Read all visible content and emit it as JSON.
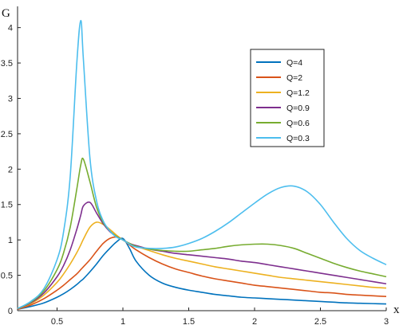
{
  "chart_data": {
    "type": "line",
    "title": "",
    "xlabel": "x",
    "ylabel": "G",
    "xlim": [
      0.2,
      3
    ],
    "ylim": [
      0,
      4.3
    ],
    "xticks": [
      0.5,
      1,
      1.5,
      2,
      2.5,
      3
    ],
    "xtick_labels": [
      "0.5",
      "1",
      "1.5",
      "2",
      "2.5",
      "3"
    ],
    "yticks": [
      0,
      0.5,
      1,
      1.5,
      2,
      2.5,
      3,
      3.5,
      4
    ],
    "ytick_labels": [
      "0",
      "0.5",
      "1",
      "1.5",
      "2",
      "2.5",
      "3",
      "3.5",
      "4"
    ],
    "grid": false,
    "legend_position": "top-right",
    "x": [
      0.2,
      0.3,
      0.4,
      0.5,
      0.55,
      0.6,
      0.65,
      0.68,
      0.7,
      0.75,
      0.8,
      0.85,
      0.9,
      0.95,
      1.0,
      1.05,
      1.1,
      1.2,
      1.3,
      1.4,
      1.5,
      1.6,
      1.7,
      1.8,
      1.9,
      2.0,
      2.1,
      2.2,
      2.3,
      2.4,
      2.5,
      2.6,
      2.7,
      2.8,
      2.9,
      3.0
    ],
    "series": [
      {
        "name": "Q=4",
        "color": "#0072BD",
        "values": [
          0.02,
          0.06,
          0.11,
          0.19,
          0.24,
          0.3,
          0.37,
          0.42,
          0.45,
          0.55,
          0.66,
          0.78,
          0.88,
          0.97,
          1.02,
          0.88,
          0.7,
          0.5,
          0.39,
          0.33,
          0.29,
          0.26,
          0.23,
          0.21,
          0.19,
          0.18,
          0.17,
          0.16,
          0.15,
          0.14,
          0.13,
          0.12,
          0.11,
          0.105,
          0.1,
          0.095
        ]
      },
      {
        "name": "Q=2",
        "color": "#D95319",
        "values": [
          0.02,
          0.08,
          0.17,
          0.29,
          0.36,
          0.44,
          0.52,
          0.58,
          0.62,
          0.72,
          0.84,
          0.95,
          1.02,
          1.04,
          1.0,
          0.93,
          0.86,
          0.75,
          0.66,
          0.59,
          0.54,
          0.49,
          0.45,
          0.42,
          0.39,
          0.36,
          0.34,
          0.32,
          0.3,
          0.28,
          0.26,
          0.25,
          0.23,
          0.22,
          0.21,
          0.2
        ]
      },
      {
        "name": "Q=1.2",
        "color": "#EDB120",
        "values": [
          0.03,
          0.1,
          0.22,
          0.4,
          0.52,
          0.66,
          0.82,
          0.93,
          1.01,
          1.18,
          1.25,
          1.22,
          1.15,
          1.07,
          1.0,
          0.95,
          0.91,
          0.85,
          0.79,
          0.74,
          0.7,
          0.66,
          0.62,
          0.59,
          0.56,
          0.53,
          0.5,
          0.47,
          0.45,
          0.43,
          0.41,
          0.39,
          0.37,
          0.35,
          0.33,
          0.32
        ]
      },
      {
        "name": "Q=0.9",
        "color": "#7E2F8E",
        "values": [
          0.03,
          0.11,
          0.25,
          0.48,
          0.64,
          0.86,
          1.15,
          1.35,
          1.48,
          1.53,
          1.38,
          1.23,
          1.12,
          1.05,
          1.0,
          0.95,
          0.92,
          0.87,
          0.84,
          0.81,
          0.79,
          0.77,
          0.75,
          0.73,
          0.7,
          0.68,
          0.65,
          0.62,
          0.59,
          0.56,
          0.53,
          0.5,
          0.47,
          0.44,
          0.41,
          0.38
        ]
      },
      {
        "name": "Q=0.6",
        "color": "#77AC30",
        "values": [
          0.03,
          0.12,
          0.28,
          0.58,
          0.82,
          1.18,
          1.72,
          2.06,
          2.14,
          1.82,
          1.46,
          1.25,
          1.13,
          1.05,
          1.0,
          0.95,
          0.91,
          0.87,
          0.85,
          0.84,
          0.84,
          0.86,
          0.88,
          0.91,
          0.93,
          0.94,
          0.94,
          0.92,
          0.88,
          0.81,
          0.74,
          0.67,
          0.61,
          0.56,
          0.52,
          0.48
        ]
      },
      {
        "name": "Q=0.3",
        "color": "#4DBEEE",
        "values": [
          0.03,
          0.13,
          0.31,
          0.72,
          1.12,
          1.9,
          3.5,
          4.1,
          3.55,
          2.15,
          1.55,
          1.27,
          1.13,
          1.04,
          1.0,
          0.94,
          0.9,
          0.88,
          0.88,
          0.9,
          0.95,
          1.02,
          1.12,
          1.24,
          1.38,
          1.52,
          1.65,
          1.74,
          1.76,
          1.68,
          1.5,
          1.25,
          1.02,
          0.85,
          0.74,
          0.65
        ]
      }
    ]
  }
}
